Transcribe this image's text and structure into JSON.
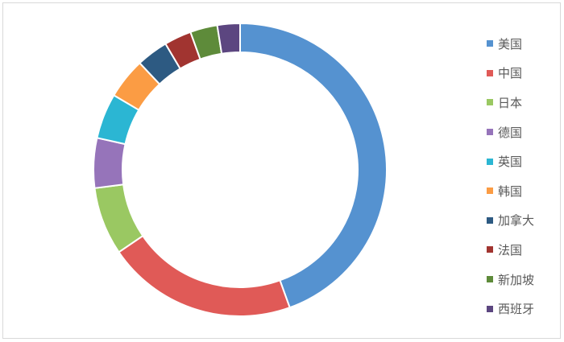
{
  "chart_data": {
    "type": "pie",
    "style": "donut",
    "legend_position": "right",
    "categories": [
      "美国",
      "中国",
      "日本",
      "德国",
      "英国",
      "韩国",
      "加拿大",
      "法国",
      "新加坡",
      "西班牙"
    ],
    "values": [
      44.5,
      21.0,
      7.5,
      5.5,
      5.0,
      4.5,
      3.5,
      3.0,
      3.0,
      2.5
    ],
    "colors": [
      "#5592d0",
      "#e05a57",
      "#9ac862",
      "#9674ba",
      "#2bb6d3",
      "#fb9c44",
      "#2d5a82",
      "#a13430",
      "#5e8b3a",
      "#5c4680"
    ]
  }
}
